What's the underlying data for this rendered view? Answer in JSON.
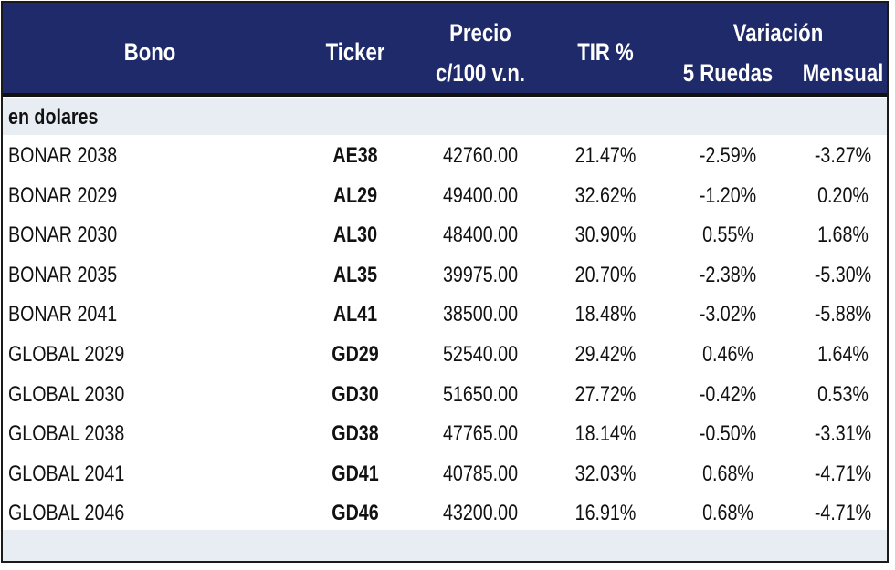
{
  "header": {
    "bono": "Bono",
    "ticker": "Ticker",
    "precio_line1": "Precio",
    "precio_line2": "c/100 v.n.",
    "tir": "TIR %",
    "variacion": "Variación",
    "ruedas": "5 Ruedas",
    "mensual": "Mensual"
  },
  "section": {
    "label": "en dolares"
  },
  "rows": [
    {
      "bono": "BONAR 2038",
      "ticker": "AE38",
      "precio": "42760.00",
      "tir": "21.47%",
      "var5": "-2.59%",
      "mensual": "-3.27%"
    },
    {
      "bono": "BONAR 2029",
      "ticker": "AL29",
      "precio": "49400.00",
      "tir": "32.62%",
      "var5": "-1.20%",
      "mensual": "0.20%"
    },
    {
      "bono": "BONAR 2030",
      "ticker": "AL30",
      "precio": "48400.00",
      "tir": "30.90%",
      "var5": "0.55%",
      "mensual": "1.68%"
    },
    {
      "bono": "BONAR 2035",
      "ticker": "AL35",
      "precio": "39975.00",
      "tir": "20.70%",
      "var5": "-2.38%",
      "mensual": "-5.30%"
    },
    {
      "bono": "BONAR 2041",
      "ticker": "AL41",
      "precio": "38500.00",
      "tir": "18.48%",
      "var5": "-3.02%",
      "mensual": "-5.88%"
    },
    {
      "bono": "GLOBAL 2029",
      "ticker": "GD29",
      "precio": "52540.00",
      "tir": "29.42%",
      "var5": "0.46%",
      "mensual": "1.64%"
    },
    {
      "bono": "GLOBAL 2030",
      "ticker": "GD30",
      "precio": "51650.00",
      "tir": "27.72%",
      "var5": "-0.42%",
      "mensual": "0.53%"
    },
    {
      "bono": "GLOBAL 2038",
      "ticker": "GD38",
      "precio": "47765.00",
      "tir": "18.14%",
      "var5": "-0.50%",
      "mensual": "-3.31%"
    },
    {
      "bono": "GLOBAL 2041",
      "ticker": "GD41",
      "precio": "40785.00",
      "tir": "32.03%",
      "var5": "0.68%",
      "mensual": "-4.71%"
    },
    {
      "bono": "GLOBAL 2046",
      "ticker": "GD46",
      "precio": "43200.00",
      "tir": "16.91%",
      "var5": "0.68%",
      "mensual": "-4.71%"
    }
  ],
  "colors": {
    "header_bg": "#1f2a6b",
    "header_text": "#ffffff",
    "band_bg": "#e8ecf3"
  }
}
